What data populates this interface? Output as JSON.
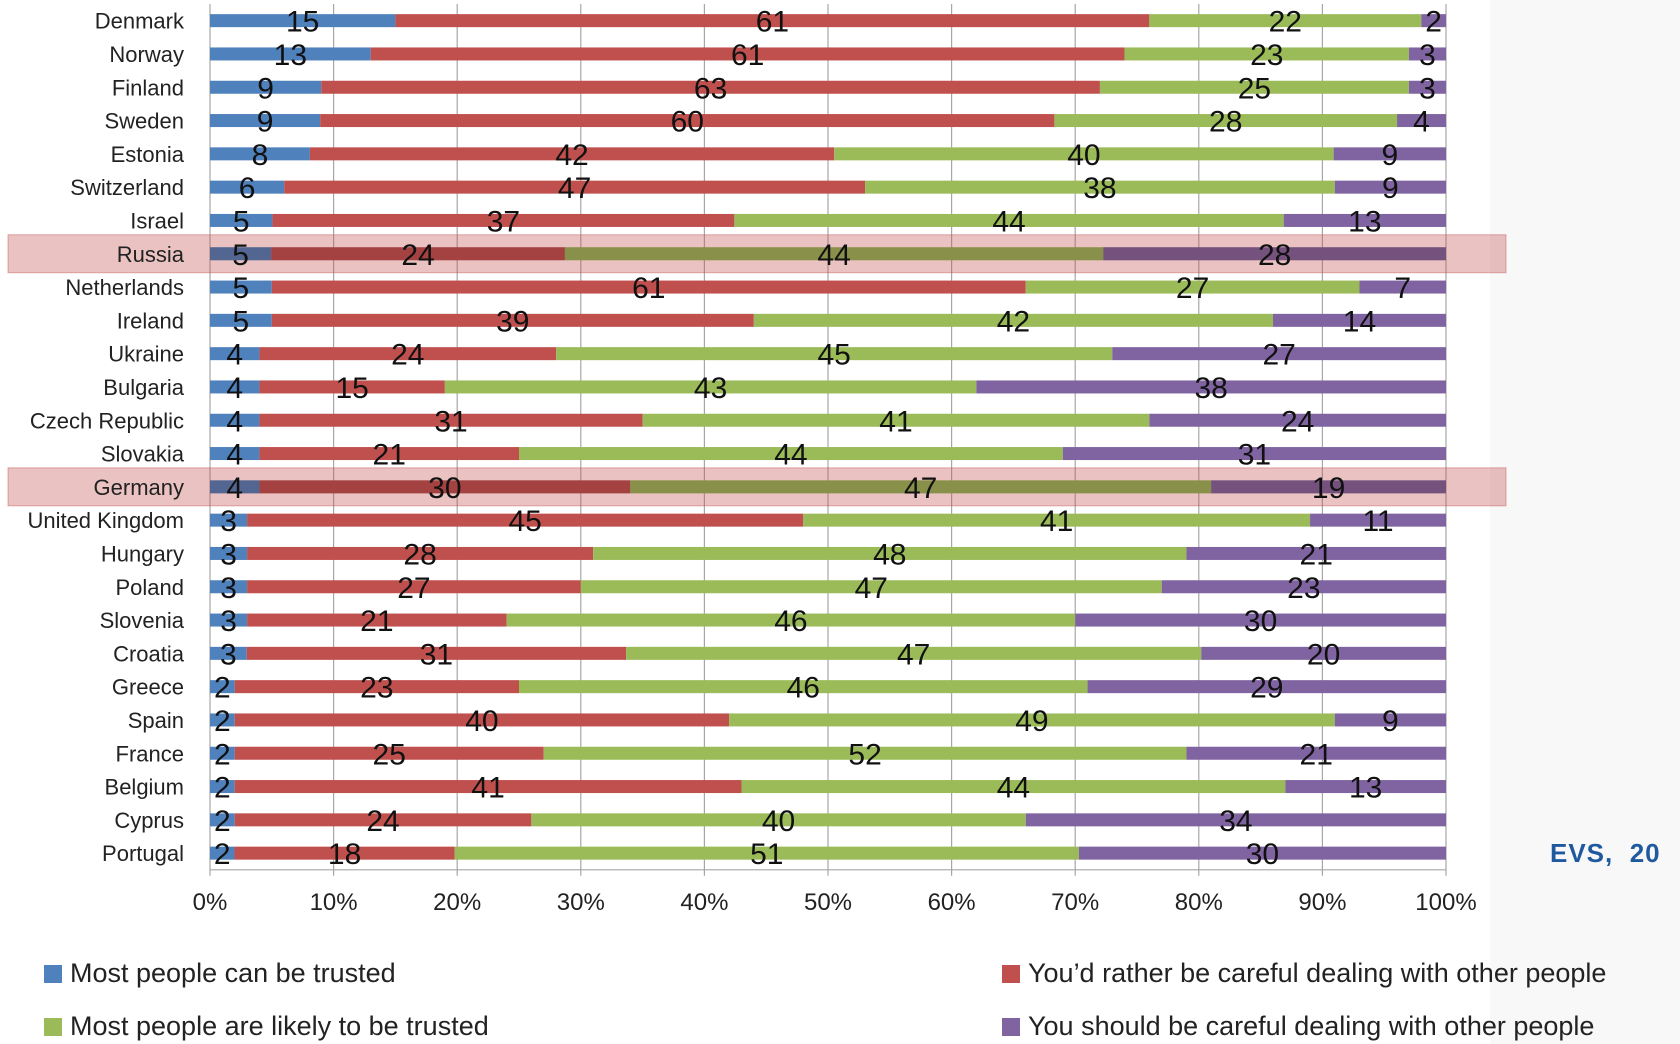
{
  "source_note": "EVS,  20",
  "chart_data": {
    "type": "bar",
    "orientation": "horizontal",
    "stacked": "percent",
    "categories": [
      "Denmark",
      "Norway",
      "Finland",
      "Sweden",
      "Estonia",
      "Switzerland",
      "Israel",
      "Russia",
      "Netherlands",
      "Ireland",
      "Ukraine",
      "Bulgaria",
      "Czech Republic",
      "Slovakia",
      "Germany",
      "United Kingdom",
      "Hungary",
      "Poland",
      "Slovenia",
      "Croatia",
      "Greece",
      "Spain",
      "France",
      "Belgium",
      "Cyprus",
      "Portugal"
    ],
    "highlighted": [
      "Russia",
      "Germany"
    ],
    "highlight_color": "#c0504d",
    "xlim": [
      0,
      100
    ],
    "x_ticks": [
      "0%",
      "10%",
      "20%",
      "30%",
      "40%",
      "50%",
      "60%",
      "70%",
      "80%",
      "90%",
      "100%"
    ],
    "grid": true,
    "legend_position": "bottom",
    "series": [
      {
        "name": "Most people can be trusted",
        "color": "#4f81bd",
        "values": [
          15,
          13,
          9,
          9,
          8,
          6,
          5,
          5,
          5,
          5,
          4,
          4,
          4,
          4,
          4,
          3,
          3,
          3,
          3,
          3,
          2,
          2,
          2,
          2,
          2,
          2
        ]
      },
      {
        "name": "You’d rather be careful dealing with other people",
        "color": "#c0504d",
        "values": [
          61,
          61,
          63,
          60,
          42,
          47,
          37,
          24,
          61,
          39,
          24,
          15,
          31,
          21,
          30,
          45,
          28,
          27,
          21,
          31,
          23,
          40,
          25,
          41,
          24,
          18
        ]
      },
      {
        "name": "Most people are likely to be trusted",
        "color": "#9bbb59",
        "values": [
          22,
          23,
          25,
          28,
          40,
          38,
          44,
          44,
          27,
          42,
          45,
          43,
          41,
          44,
          47,
          41,
          48,
          47,
          46,
          47,
          46,
          49,
          52,
          44,
          40,
          51
        ]
      },
      {
        "name": "You should be careful dealing with other people",
        "color": "#8064a2",
        "values": [
          2,
          3,
          3,
          4,
          9,
          9,
          13,
          28,
          7,
          14,
          27,
          38,
          24,
          31,
          19,
          11,
          21,
          23,
          30,
          20,
          29,
          9,
          21,
          13,
          34,
          30
        ]
      }
    ]
  }
}
